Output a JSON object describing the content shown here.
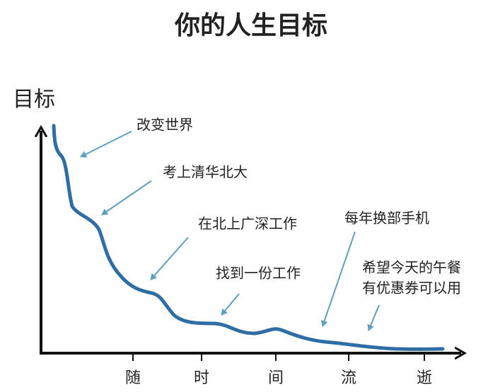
{
  "header": {
    "title": "你的人生目标"
  },
  "axes": {
    "y_label": "目标",
    "x_labels": [
      "随",
      "时",
      "间",
      "流",
      "逝"
    ]
  },
  "annotations": [
    {
      "lines": [
        "改变世界"
      ]
    },
    {
      "lines": [
        "考上清华北大"
      ]
    },
    {
      "lines": [
        "在北上广深工作"
      ]
    },
    {
      "lines": [
        "找到一份工作"
      ]
    },
    {
      "lines": [
        "每年换部手机"
      ]
    },
    {
      "lines": [
        "希望今天的午餐",
        "有优惠券可以用"
      ]
    }
  ]
}
